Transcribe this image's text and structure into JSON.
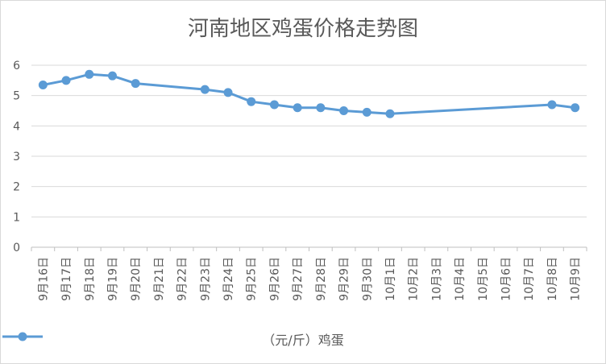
{
  "chart_data": {
    "type": "line",
    "title": "河南地区鸡蛋价格走势图",
    "xlabel": "",
    "ylabel": "",
    "ylim": [
      0,
      6
    ],
    "yticks": [
      0,
      1,
      2,
      3,
      4,
      5,
      6
    ],
    "grid": true,
    "legend_position": "bottom",
    "categories": [
      "9月16日",
      "9月17日",
      "9月18日",
      "9月19日",
      "9月20日",
      "9月21日",
      "9月22日",
      "9月23日",
      "9月24日",
      "9月25日",
      "9月26日",
      "9月27日",
      "9月28日",
      "9月29日",
      "9月30日",
      "10月1日",
      "10月2日",
      "10月3日",
      "10月4日",
      "10月5日",
      "10月6日",
      "10月7日",
      "10月8日",
      "10月9日"
    ],
    "series": [
      {
        "name": "（元/斤）鸡蛋",
        "color": "#5b9bd5",
        "values": [
          5.35,
          5.5,
          5.7,
          5.65,
          5.4,
          null,
          null,
          5.2,
          5.1,
          4.8,
          4.7,
          4.6,
          4.6,
          4.5,
          4.45,
          4.4,
          null,
          null,
          null,
          null,
          null,
          null,
          4.7,
          4.6
        ]
      }
    ]
  }
}
